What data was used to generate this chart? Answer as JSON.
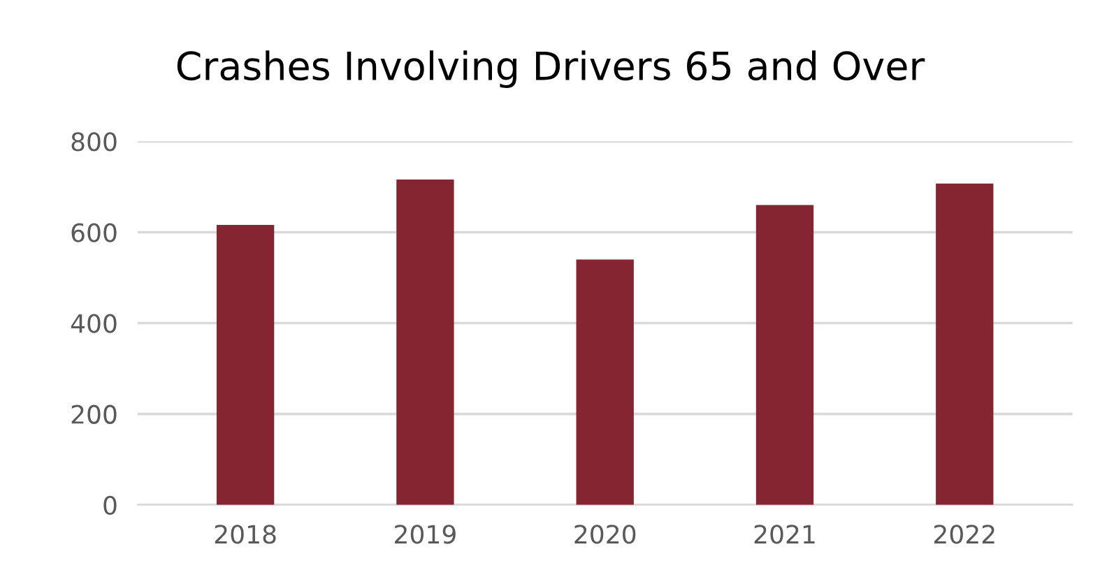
{
  "chart_data": {
    "type": "bar",
    "title": "Crashes Involving Drivers 65 and Over",
    "categories": [
      "2018",
      "2019",
      "2020",
      "2021",
      "2022"
    ],
    "values": [
      616,
      716,
      540,
      660,
      707
    ],
    "color": "#842531",
    "ylim": [
      0,
      800
    ],
    "yticks": [
      0,
      200,
      400,
      600,
      800
    ],
    "grid": "y"
  }
}
